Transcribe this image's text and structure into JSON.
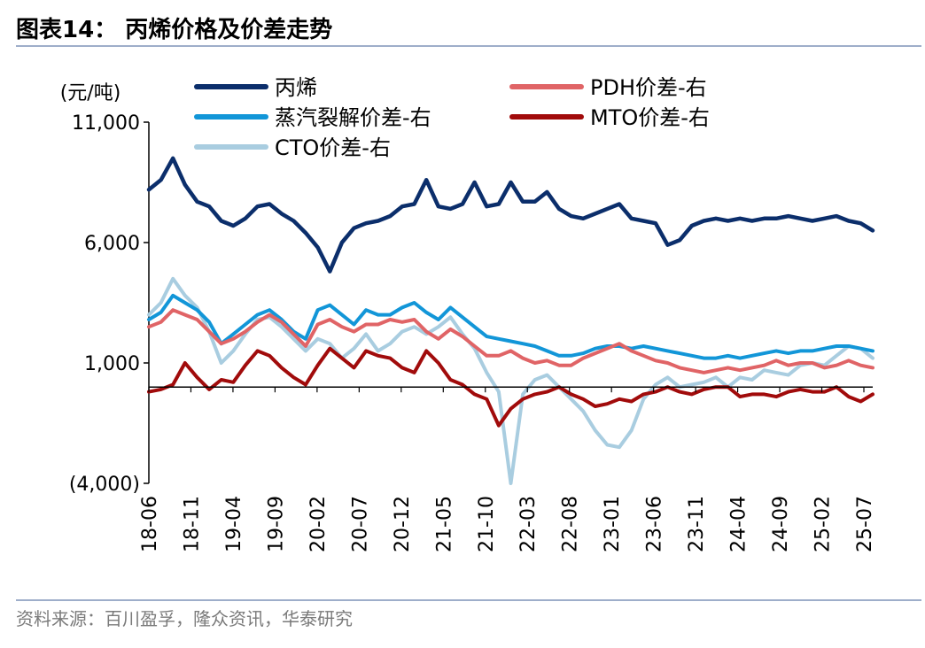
{
  "header": {
    "title": "图表14：  丙烯价格及价差走势"
  },
  "footer": {
    "source": "资料来源：百川盈孚，隆众资讯，华泰研究"
  },
  "chart_data": {
    "type": "line",
    "title": "图表14：  丙烯价格及价差走势",
    "ylabel": "(元/吨)",
    "ylim": [
      -4000,
      11000
    ],
    "yticks": [
      11000,
      6000,
      1000,
      -4000
    ],
    "ytick_labels": [
      "11,000",
      "6,000",
      "1,000",
      "(4,000)"
    ],
    "xticks": [
      "18-06",
      "18-11",
      "19-04",
      "19-09",
      "20-02",
      "20-07",
      "20-12",
      "21-05",
      "21-10",
      "22-03",
      "22-08",
      "23-01",
      "23-06",
      "23-11",
      "24-04",
      "24-09",
      "25-02",
      "25-07"
    ],
    "legend_position": "top",
    "colors": {
      "propylene": "#0b2e6b",
      "steam": "#1296d8",
      "cto": "#a9cde0",
      "pdh": "#e06466",
      "mto": "#a10b0b"
    },
    "series": [
      {
        "name": "丙烯",
        "key": "propylene",
        "axis": "left",
        "values": [
          8200,
          8600,
          9500,
          8400,
          7700,
          7500,
          6900,
          6700,
          7000,
          7500,
          7600,
          7200,
          6900,
          6400,
          5800,
          4800,
          6000,
          6600,
          6800,
          6900,
          7100,
          7500,
          7600,
          8600,
          7500,
          7400,
          7600,
          8500,
          7500,
          7600,
          8500,
          7700,
          7700,
          8100,
          7400,
          7100,
          7000,
          7200,
          7400,
          7600,
          7000,
          6900,
          6800,
          5900,
          6100,
          6700,
          6900,
          7000,
          6900,
          7000,
          6900,
          7000,
          7000,
          7100,
          7000,
          6900,
          7000,
          7100,
          6900,
          6800,
          6500
        ]
      },
      {
        "name": "蒸汽裂解价差-右",
        "key": "steam",
        "axis": "left",
        "values": [
          2800,
          3100,
          3800,
          3500,
          3200,
          2700,
          1800,
          2200,
          2600,
          3000,
          3200,
          2800,
          2300,
          2000,
          3200,
          3400,
          3000,
          2600,
          3200,
          3000,
          3000,
          3300,
          3500,
          3100,
          2800,
          3300,
          2900,
          2500,
          2100,
          2000,
          1900,
          1800,
          1700,
          1500,
          1300,
          1300,
          1400,
          1600,
          1700,
          1700,
          1600,
          1700,
          1600,
          1500,
          1400,
          1300,
          1200,
          1200,
          1300,
          1200,
          1300,
          1400,
          1500,
          1400,
          1500,
          1500,
          1600,
          1700,
          1700,
          1600,
          1500
        ]
      },
      {
        "name": "CTO价差-右",
        "key": "cto",
        "axis": "left",
        "values": [
          3000,
          3500,
          4500,
          3800,
          3300,
          2300,
          1000,
          1500,
          2200,
          2800,
          2900,
          2500,
          2000,
          1500,
          2000,
          1800,
          1200,
          1600,
          2200,
          1500,
          1800,
          2300,
          2500,
          2200,
          2500,
          2900,
          2200,
          1600,
          600,
          -200,
          -4000,
          -300,
          300,
          500,
          0,
          -500,
          -1000,
          -1800,
          -2400,
          -2500,
          -1800,
          -500,
          100,
          400,
          0,
          100,
          200,
          400,
          0,
          400,
          300,
          700,
          600,
          500,
          900,
          1000,
          900,
          1300,
          1700,
          1600,
          1200
        ]
      },
      {
        "name": "PDH价差-右",
        "key": "pdh",
        "axis": "left",
        "values": [
          2500,
          2700,
          3200,
          3000,
          2800,
          2300,
          1800,
          2000,
          2300,
          2700,
          3000,
          2700,
          2200,
          1700,
          2600,
          2800,
          2500,
          2300,
          2600,
          2600,
          2800,
          2700,
          2800,
          2300,
          2000,
          2400,
          2100,
          1700,
          1300,
          1300,
          1500,
          1200,
          1000,
          1100,
          900,
          900,
          1200,
          1400,
          1600,
          1800,
          1500,
          1300,
          1100,
          1000,
          800,
          700,
          600,
          700,
          800,
          700,
          800,
          900,
          1100,
          900,
          1000,
          1000,
          800,
          900,
          1100,
          900,
          800
        ]
      },
      {
        "name": "MTO价差-右",
        "key": "mto",
        "axis": "left",
        "values": [
          -200,
          -100,
          100,
          1000,
          400,
          -100,
          300,
          200,
          900,
          1500,
          1300,
          800,
          400,
          100,
          900,
          1600,
          1200,
          800,
          1500,
          1300,
          1200,
          800,
          600,
          1500,
          1000,
          300,
          100,
          -300,
          -500,
          -1600,
          -900,
          -500,
          -300,
          -200,
          0,
          -300,
          -500,
          -800,
          -700,
          -500,
          -600,
          -300,
          -200,
          0,
          -200,
          -300,
          -100,
          0,
          0,
          -400,
          -300,
          -300,
          -400,
          -200,
          -100,
          -200,
          -200,
          0,
          -400,
          -600,
          -300
        ]
      }
    ]
  }
}
